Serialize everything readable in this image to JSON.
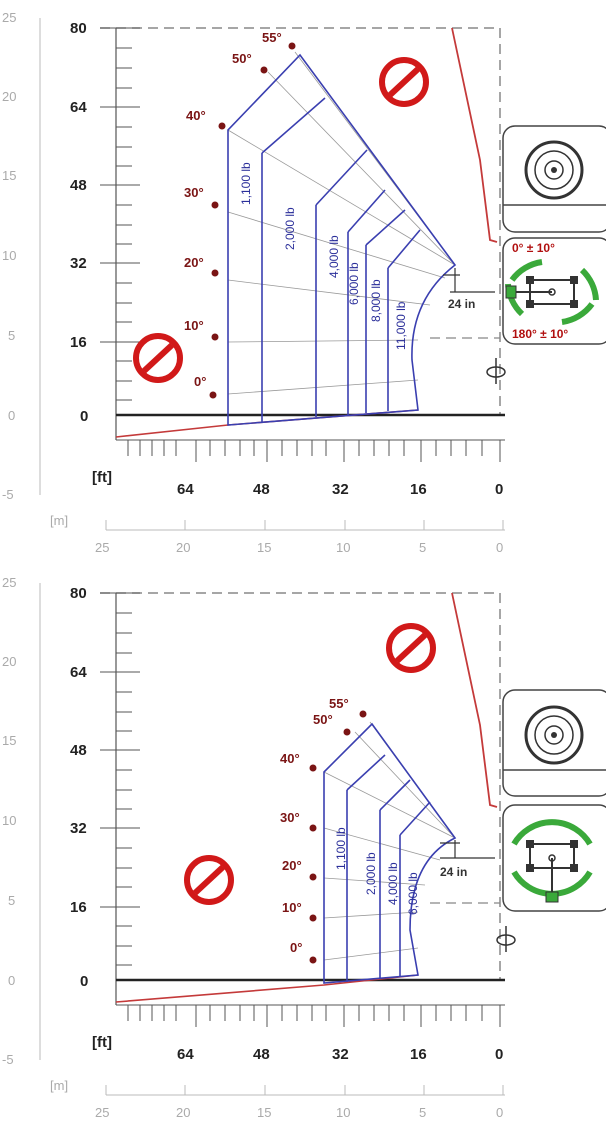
{
  "units": {
    "ft": "[ft]",
    "m": "[m]"
  },
  "ft_ticks": [
    "80",
    "64",
    "48",
    "32",
    "16",
    "0"
  ],
  "ft_x_ticks": [
    "64",
    "48",
    "32",
    "16",
    "0"
  ],
  "m_ticks": [
    "25",
    "20",
    "15",
    "10",
    "5",
    "0",
    "-5"
  ],
  "m_x_ticks": [
    "25",
    "20",
    "15",
    "10",
    "5",
    "0"
  ],
  "diagrams": [
    {
      "angles": [
        "55°",
        "50°",
        "40°",
        "30°",
        "20°",
        "10°",
        "0°"
      ],
      "loads": [
        "1,100 lb",
        "2,000 lb",
        "4,000 lb",
        "6,000 lb",
        "8,000 lb",
        "11,000 lb"
      ],
      "clearance": "24 in",
      "rotation_top": "0° ± 10°",
      "rotation_bottom": "180° ± 10°"
    },
    {
      "angles": [
        "55°",
        "50°",
        "40°",
        "30°",
        "20°",
        "10°",
        "0°"
      ],
      "loads": [
        "1,100 lb",
        "2,000 lb",
        "4,000 lb",
        "6,000 lb"
      ],
      "clearance": "24 in"
    }
  ],
  "colors": {
    "boundary": "#c43a3a",
    "envelope": "#3a3fb0",
    "angle": "#7a1414",
    "prohibit": "#d11919",
    "green": "#3aa93a"
  },
  "icons": [
    "no-entry-icon",
    "wheel-icon",
    "chassis-rotation-icon",
    "rotation-arrow-icon"
  ]
}
